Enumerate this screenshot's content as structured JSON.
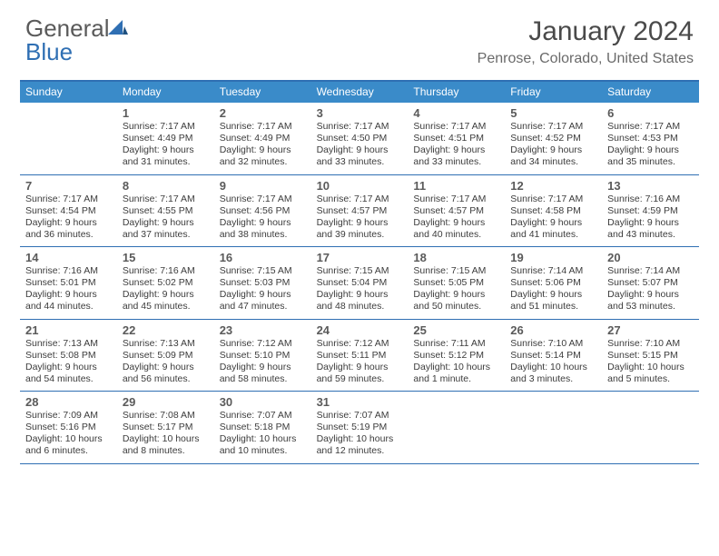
{
  "logo": {
    "part1": "General",
    "part2": "Blue"
  },
  "title": "January 2024",
  "location": "Penrose, Colorado, United States",
  "colors": {
    "header_bar": "#3a8bc9",
    "rule": "#2f6fb3",
    "text_dark": "#3c3c3c",
    "text_mid": "#5a5a5a",
    "text_light": "#6a6a6a",
    "logo_blue": "#2f6fb3"
  },
  "weekdays": [
    "Sunday",
    "Monday",
    "Tuesday",
    "Wednesday",
    "Thursday",
    "Friday",
    "Saturday"
  ],
  "start_offset": 1,
  "days": [
    {
      "n": 1,
      "sr": "7:17 AM",
      "ss": "4:49 PM",
      "dl": "9 hours and 31 minutes."
    },
    {
      "n": 2,
      "sr": "7:17 AM",
      "ss": "4:49 PM",
      "dl": "9 hours and 32 minutes."
    },
    {
      "n": 3,
      "sr": "7:17 AM",
      "ss": "4:50 PM",
      "dl": "9 hours and 33 minutes."
    },
    {
      "n": 4,
      "sr": "7:17 AM",
      "ss": "4:51 PM",
      "dl": "9 hours and 33 minutes."
    },
    {
      "n": 5,
      "sr": "7:17 AM",
      "ss": "4:52 PM",
      "dl": "9 hours and 34 minutes."
    },
    {
      "n": 6,
      "sr": "7:17 AM",
      "ss": "4:53 PM",
      "dl": "9 hours and 35 minutes."
    },
    {
      "n": 7,
      "sr": "7:17 AM",
      "ss": "4:54 PM",
      "dl": "9 hours and 36 minutes."
    },
    {
      "n": 8,
      "sr": "7:17 AM",
      "ss": "4:55 PM",
      "dl": "9 hours and 37 minutes."
    },
    {
      "n": 9,
      "sr": "7:17 AM",
      "ss": "4:56 PM",
      "dl": "9 hours and 38 minutes."
    },
    {
      "n": 10,
      "sr": "7:17 AM",
      "ss": "4:57 PM",
      "dl": "9 hours and 39 minutes."
    },
    {
      "n": 11,
      "sr": "7:17 AM",
      "ss": "4:57 PM",
      "dl": "9 hours and 40 minutes."
    },
    {
      "n": 12,
      "sr": "7:17 AM",
      "ss": "4:58 PM",
      "dl": "9 hours and 41 minutes."
    },
    {
      "n": 13,
      "sr": "7:16 AM",
      "ss": "4:59 PM",
      "dl": "9 hours and 43 minutes."
    },
    {
      "n": 14,
      "sr": "7:16 AM",
      "ss": "5:01 PM",
      "dl": "9 hours and 44 minutes."
    },
    {
      "n": 15,
      "sr": "7:16 AM",
      "ss": "5:02 PM",
      "dl": "9 hours and 45 minutes."
    },
    {
      "n": 16,
      "sr": "7:15 AM",
      "ss": "5:03 PM",
      "dl": "9 hours and 47 minutes."
    },
    {
      "n": 17,
      "sr": "7:15 AM",
      "ss": "5:04 PM",
      "dl": "9 hours and 48 minutes."
    },
    {
      "n": 18,
      "sr": "7:15 AM",
      "ss": "5:05 PM",
      "dl": "9 hours and 50 minutes."
    },
    {
      "n": 19,
      "sr": "7:14 AM",
      "ss": "5:06 PM",
      "dl": "9 hours and 51 minutes."
    },
    {
      "n": 20,
      "sr": "7:14 AM",
      "ss": "5:07 PM",
      "dl": "9 hours and 53 minutes."
    },
    {
      "n": 21,
      "sr": "7:13 AM",
      "ss": "5:08 PM",
      "dl": "9 hours and 54 minutes."
    },
    {
      "n": 22,
      "sr": "7:13 AM",
      "ss": "5:09 PM",
      "dl": "9 hours and 56 minutes."
    },
    {
      "n": 23,
      "sr": "7:12 AM",
      "ss": "5:10 PM",
      "dl": "9 hours and 58 minutes."
    },
    {
      "n": 24,
      "sr": "7:12 AM",
      "ss": "5:11 PM",
      "dl": "9 hours and 59 minutes."
    },
    {
      "n": 25,
      "sr": "7:11 AM",
      "ss": "5:12 PM",
      "dl": "10 hours and 1 minute."
    },
    {
      "n": 26,
      "sr": "7:10 AM",
      "ss": "5:14 PM",
      "dl": "10 hours and 3 minutes."
    },
    {
      "n": 27,
      "sr": "7:10 AM",
      "ss": "5:15 PM",
      "dl": "10 hours and 5 minutes."
    },
    {
      "n": 28,
      "sr": "7:09 AM",
      "ss": "5:16 PM",
      "dl": "10 hours and 6 minutes."
    },
    {
      "n": 29,
      "sr": "7:08 AM",
      "ss": "5:17 PM",
      "dl": "10 hours and 8 minutes."
    },
    {
      "n": 30,
      "sr": "7:07 AM",
      "ss": "5:18 PM",
      "dl": "10 hours and 10 minutes."
    },
    {
      "n": 31,
      "sr": "7:07 AM",
      "ss": "5:19 PM",
      "dl": "10 hours and 12 minutes."
    }
  ],
  "labels": {
    "sunrise": "Sunrise:",
    "sunset": "Sunset:",
    "daylight": "Daylight:"
  }
}
